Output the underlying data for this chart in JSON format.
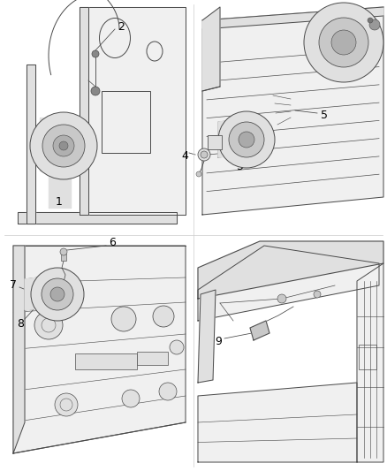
{
  "bg_color": "#ffffff",
  "line_color": "#4a4a4a",
  "label_color": "#000000",
  "font_size_callout": 8,
  "line_width": 0.7,
  "figsize": [
    4.38,
    5.33
  ],
  "dpi": 100,
  "quad_line_color": "#aaaaaa",
  "fill_light": "#f0f0f0",
  "fill_mid": "#e0e0e0",
  "fill_dark": "#c8c8c8"
}
